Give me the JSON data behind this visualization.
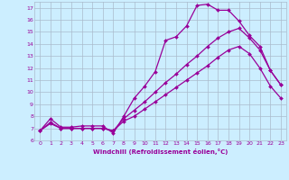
{
  "xlabel": "Windchill (Refroidissement éolien,°C)",
  "bg_color": "#cceeff",
  "grid_color": "#aabbcc",
  "line_color": "#990099",
  "xlim": [
    -0.5,
    23.5
  ],
  "ylim": [
    6,
    17.5
  ],
  "xticks": [
    0,
    1,
    2,
    3,
    4,
    5,
    6,
    7,
    8,
    9,
    10,
    11,
    12,
    13,
    14,
    15,
    16,
    17,
    18,
    19,
    20,
    21,
    22,
    23
  ],
  "yticks": [
    6,
    7,
    8,
    9,
    10,
    11,
    12,
    13,
    14,
    15,
    16,
    17
  ],
  "series1_x": [
    0,
    1,
    2,
    3,
    4,
    5,
    6,
    7,
    8,
    9,
    10,
    11,
    12,
    13,
    14,
    15,
    16,
    17,
    18,
    19,
    20,
    21,
    22,
    23
  ],
  "series1_y": [
    6.8,
    7.8,
    7.1,
    7.1,
    7.2,
    7.2,
    7.2,
    6.6,
    8.0,
    9.5,
    10.5,
    11.7,
    14.3,
    14.6,
    15.5,
    17.2,
    17.3,
    16.8,
    16.8,
    15.9,
    14.7,
    13.8,
    11.8,
    10.6
  ],
  "series2_x": [
    0,
    1,
    2,
    3,
    4,
    5,
    6,
    7,
    8,
    9,
    10,
    11,
    12,
    13,
    14,
    15,
    16,
    17,
    18,
    19,
    20,
    21,
    22,
    23
  ],
  "series2_y": [
    6.8,
    7.5,
    7.0,
    7.0,
    7.0,
    7.0,
    7.0,
    6.8,
    7.8,
    8.5,
    9.2,
    10.0,
    10.8,
    11.5,
    12.3,
    13.0,
    13.8,
    14.5,
    15.0,
    15.3,
    14.5,
    13.5,
    11.8,
    10.6
  ],
  "series3_x": [
    0,
    1,
    2,
    3,
    4,
    5,
    6,
    7,
    8,
    9,
    10,
    11,
    12,
    13,
    14,
    15,
    16,
    17,
    18,
    19,
    20,
    21,
    22,
    23
  ],
  "series3_y": [
    6.8,
    7.4,
    7.0,
    7.0,
    7.0,
    7.0,
    7.0,
    6.8,
    7.6,
    8.0,
    8.6,
    9.2,
    9.8,
    10.4,
    11.0,
    11.6,
    12.2,
    12.9,
    13.5,
    13.8,
    13.2,
    12.0,
    10.5,
    9.5
  ]
}
